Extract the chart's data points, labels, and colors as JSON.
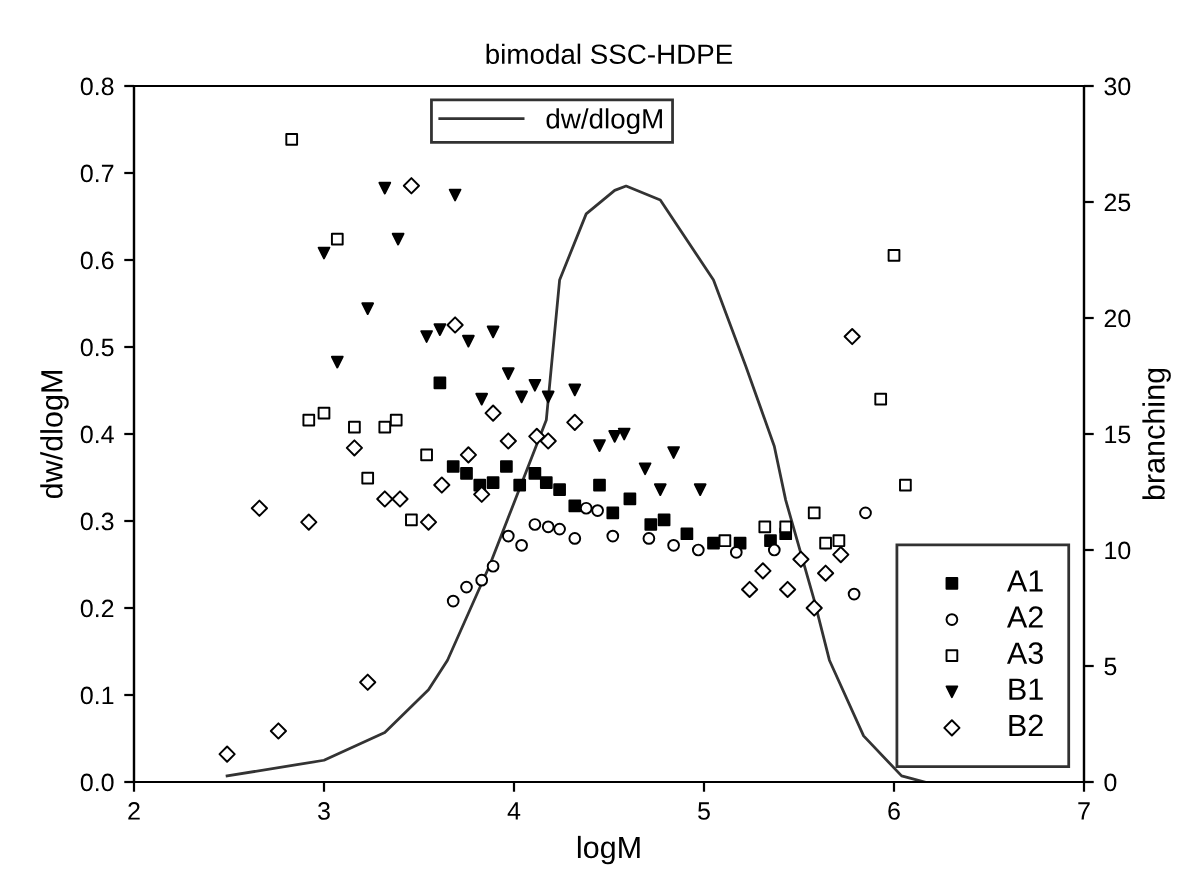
{
  "chart_data": {
    "type": "scatter",
    "title": "bimodal SSC-HDPE",
    "xlabel": "logM",
    "ylabel": "dw/dlogM",
    "y2label": "branching",
    "xlim": [
      2,
      7
    ],
    "xticks": [
      2,
      3,
      4,
      5,
      6,
      7
    ],
    "ylim": [
      0,
      0.8
    ],
    "yticks": [
      {
        "value": 0,
        "label": "0.0"
      },
      0.1,
      0.2,
      0.3,
      0.4,
      0.5,
      0.6,
      0.7,
      0.8
    ],
    "y2lim": [
      0,
      30
    ],
    "y2ticks": [
      0,
      5,
      10,
      15,
      20,
      25,
      30
    ],
    "grid": false,
    "legend": "right",
    "series": [
      {
        "name": "dw/dlogM",
        "type": "line",
        "color": "#333333",
        "marker": "none",
        "line_style": "solid",
        "x": [
          2.49,
          3.0,
          3.32,
          3.55,
          3.65,
          3.87,
          4.17,
          4.24,
          4.38,
          4.53,
          4.59,
          4.77,
          5.05,
          5.22,
          5.37,
          5.43,
          5.58,
          5.66,
          5.84,
          6.04,
          6.16
        ],
        "values": [
          0.007,
          0.025,
          0.057,
          0.106,
          0.14,
          0.248,
          0.416,
          0.577,
          0.653,
          0.68,
          0.685,
          0.669,
          0.577,
          0.478,
          0.386,
          0.324,
          0.209,
          0.14,
          0.053,
          0.007,
          0
        ]
      },
      {
        "name": "A1",
        "axis": "y2",
        "color": "#000000",
        "marker": "square",
        "x": [
          3.61,
          3.68,
          3.75,
          3.82,
          3.89,
          3.96,
          4.03,
          4.11,
          4.17,
          4.24,
          4.32,
          4.45,
          4.52,
          4.61,
          4.72,
          4.79,
          4.91,
          5.05,
          5.19,
          5.35,
          5.43
        ],
        "values": [
          17.2,
          13.6,
          13.3,
          12.8,
          12.9,
          13.6,
          12.8,
          13.3,
          12.9,
          12.6,
          11.9,
          12.8,
          11.6,
          12.2,
          11.1,
          11.3,
          10.7,
          10.3,
          10.3,
          10.4,
          10.7
        ]
      },
      {
        "name": "A2",
        "axis": "y2",
        "color": "#ffffff",
        "marker": "circle",
        "x": [
          3.68,
          3.75,
          3.83,
          3.89,
          3.97,
          4.04,
          4.11,
          4.18,
          4.24,
          4.32,
          4.38,
          4.44,
          4.52,
          4.71,
          4.84,
          4.97,
          5.17,
          5.37,
          5.85,
          5.79
        ],
        "values": [
          7.8,
          8.4,
          8.7,
          9.3,
          10.6,
          10.2,
          11.1,
          11.0,
          10.9,
          10.5,
          11.8,
          11.7,
          10.6,
          10.5,
          10.2,
          10.0,
          9.9,
          10.0,
          11.6,
          8.1
        ]
      },
      {
        "name": "A3",
        "axis": "y2",
        "color": "#ffffff",
        "marker": "square",
        "x": [
          2.83,
          3.07,
          2.92,
          3.0,
          3.16,
          3.32,
          3.38,
          3.54,
          3.23,
          3.46,
          6.0,
          5.93,
          6.06,
          5.58,
          5.43,
          5.64,
          5.71,
          5.11,
          5.32
        ],
        "values": [
          27.7,
          23.4,
          15.6,
          15.9,
          15.3,
          15.3,
          15.6,
          14.1,
          13.1,
          11.3,
          22.7,
          16.5,
          12.8,
          11.6,
          11.0,
          10.3,
          10.4,
          10.4,
          11.0
        ]
      },
      {
        "name": "B1",
        "axis": "y2",
        "color": "#000000",
        "marker": "triangle",
        "x": [
          3.32,
          3.69,
          3.0,
          3.39,
          3.23,
          3.54,
          3.61,
          3.76,
          3.89,
          3.07,
          3.97,
          4.11,
          4.04,
          4.18,
          4.32,
          3.83,
          4.45,
          4.53,
          4.58,
          4.84,
          4.69,
          4.77,
          4.98
        ],
        "values": [
          25.6,
          25.3,
          22.8,
          23.4,
          20.4,
          19.2,
          19.5,
          19.0,
          19.4,
          18.1,
          17.6,
          17.1,
          16.6,
          16.6,
          16.9,
          16.5,
          14.5,
          14.9,
          15.0,
          14.2,
          13.5,
          12.6,
          12.6
        ]
      },
      {
        "name": "B2",
        "axis": "y2",
        "color": "#ffffff",
        "marker": "diamond",
        "x": [
          3.46,
          3.69,
          3.89,
          4.32,
          3.16,
          2.66,
          2.92,
          3.32,
          3.4,
          3.55,
          3.62,
          3.76,
          3.83,
          3.97,
          4.12,
          4.18,
          3.23,
          2.76,
          2.49,
          5.78,
          5.58,
          5.24,
          5.44,
          5.64,
          5.51,
          5.72,
          5.31
        ],
        "values": [
          25.7,
          19.7,
          15.9,
          15.5,
          14.4,
          11.8,
          11.2,
          12.2,
          12.2,
          11.2,
          12.8,
          14.1,
          12.4,
          14.7,
          14.9,
          14.7,
          4.3,
          2.2,
          1.2,
          19.2,
          7.5,
          8.3,
          8.3,
          9.0,
          9.6,
          9.8,
          9.1
        ]
      }
    ]
  }
}
